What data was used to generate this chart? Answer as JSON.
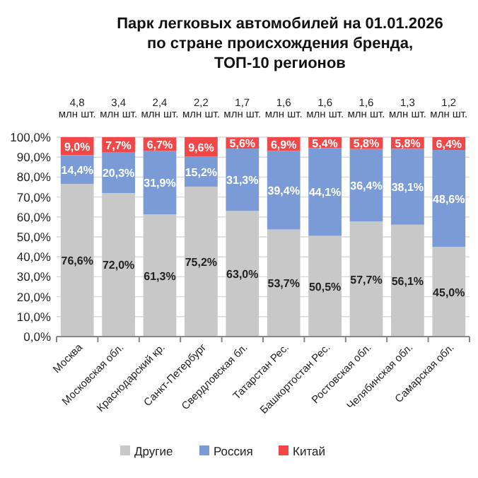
{
  "chart_data": {
    "type": "bar",
    "stacked": true,
    "title": "Парк легковых автомобилей на 01.01.2026\nпо стране происхождения бренда,\nТОП-10 регионов",
    "categories": [
      "Москва",
      "Московская обл.",
      "Краснодарский кр.",
      "Санкт-Петербург",
      "Свердловская бл.",
      "Татарстан Рес.",
      "Башкортостан Рес.",
      "Ростовская обл.",
      "Челябинская обл.",
      "Самарская обл."
    ],
    "series": [
      {
        "name": "Другие",
        "color": "#c8c8c8",
        "values": [
          76.6,
          72.0,
          61.3,
          75.2,
          63.0,
          53.7,
          50.5,
          57.7,
          56.1,
          45.0
        ],
        "value_labels": [
          "76,6%",
          "72,0%",
          "61,3%",
          "75,2%",
          "63,0%",
          "53,7%",
          "50,5%",
          "57,7%",
          "56,1%",
          "45,0%"
        ]
      },
      {
        "name": "Россия",
        "color": "#7b9bd6",
        "values": [
          14.4,
          20.3,
          31.9,
          15.2,
          31.3,
          39.4,
          44.1,
          36.4,
          38.1,
          48.6
        ],
        "value_labels": [
          "14,4%",
          "20,3%",
          "31,9%",
          "15,2%",
          "31,3%",
          "39,4%",
          "44,1%",
          "36,4%",
          "38,1%",
          "48,6%"
        ]
      },
      {
        "name": "Китай",
        "color": "#f04848",
        "values": [
          9.0,
          7.7,
          6.7,
          9.6,
          5.6,
          6.9,
          5.4,
          5.8,
          5.8,
          6.4
        ],
        "value_labels": [
          "9,0%",
          "7,7%",
          "6,7%",
          "9,6%",
          "5,6%",
          "6,9%",
          "5,4%",
          "5,8%",
          "5,8%",
          "6,4%"
        ]
      }
    ],
    "annotations": [
      "4,8 млн шт.",
      "3,4 млн шт.",
      "2,4 млн шт.",
      "2,2 млн шт.",
      "1,7 млн шт.",
      "1,6 млн шт.",
      "1,6 млн шт.",
      "1,6 млн шт.",
      "1,3 млн шт.",
      "1,2 млн шт."
    ],
    "ylim": [
      0,
      100
    ],
    "yticks": [
      {
        "value": 0,
        "label": "0,0%"
      },
      {
        "value": 10,
        "label": "10,0%"
      },
      {
        "value": 20,
        "label": "20,0%"
      },
      {
        "value": 30,
        "label": "30,0%"
      },
      {
        "value": 40,
        "label": "40,0%"
      },
      {
        "value": 50,
        "label": "50,0%"
      },
      {
        "value": 60,
        "label": "60,0%"
      },
      {
        "value": 70,
        "label": "70,0%"
      },
      {
        "value": 80,
        "label": "80,0%"
      },
      {
        "value": 90,
        "label": "90,0%"
      },
      {
        "value": 100,
        "label": "100,0%"
      }
    ],
    "grid": "y",
    "legend": "bottom"
  }
}
